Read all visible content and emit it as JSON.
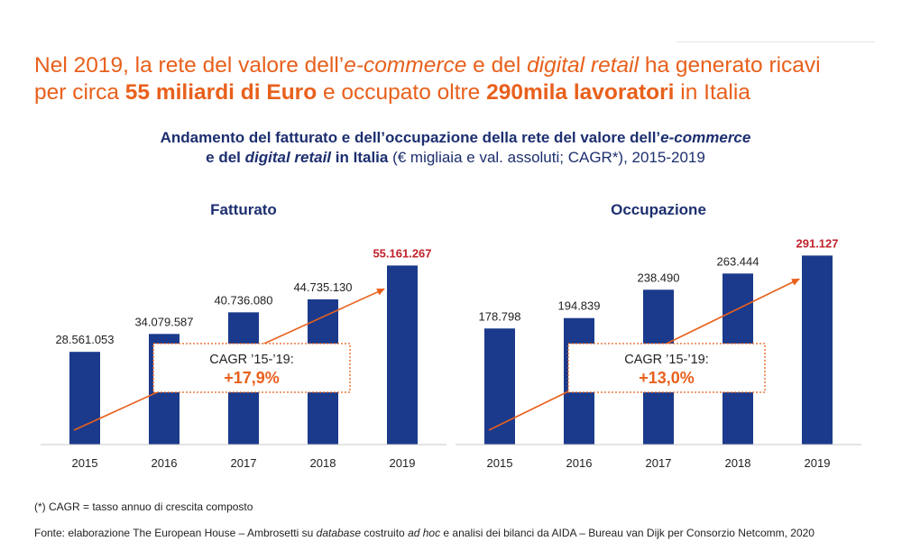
{
  "headline": {
    "p1": "Nel 2019, la rete del valore dell’",
    "p2": "e-commerce",
    "p3": " e del ",
    "p4": "digital retail",
    "p5": " ha generato ricavi",
    "p6": "per circa ",
    "p7": "55 miliardi di Euro",
    "p8": " e occupato oltre ",
    "p9": "290mila lavoratori",
    "p10": " in Italia"
  },
  "subtitle": {
    "p1": "Andamento del fatturato e dell’occupazione della rete del valore dell’",
    "p2": "e-commerce",
    "p3": "e del ",
    "p4": "digital retail",
    "p5": " in Italia",
    "p6": " (€ migliaia e val. assoluti; CAGR*), 2015-2019"
  },
  "colors": {
    "bar": "#1b3a8c",
    "accent": "#e8601c",
    "highlight": "#c0232c",
    "title": "#1d2f6f"
  },
  "chart_data": [
    {
      "type": "bar",
      "title": "Fatturato",
      "categories": [
        "2015",
        "2016",
        "2017",
        "2018",
        "2019"
      ],
      "values": [
        28561053,
        34079587,
        40736080,
        44735130,
        55161267
      ],
      "labels": [
        "28.561.053",
        "34.079.587",
        "40.736.080",
        "44.735.130",
        "55.161.267"
      ],
      "highlight_index": 4,
      "ylim": [
        0,
        60000000
      ],
      "annotation": {
        "line1": "CAGR ’15-’19:",
        "line2": "+17,9%"
      }
    },
    {
      "type": "bar",
      "title": "Occupazione",
      "categories": [
        "2015",
        "2016",
        "2017",
        "2018",
        "2019"
      ],
      "values": [
        178798,
        194839,
        238490,
        263444,
        291127
      ],
      "labels": [
        "178.798",
        "194.839",
        "238.490",
        "263.444",
        "291.127"
      ],
      "highlight_index": 4,
      "ylim": [
        0,
        300000
      ],
      "annotation": {
        "line1": "CAGR ’15-’19:",
        "line2": "+13,0%"
      }
    }
  ],
  "footnote": "(*) CAGR = tasso annuo di crescita composto",
  "source": {
    "p1": "Fonte: elaborazione The European House – Ambrosetti su ",
    "p2": "database",
    "p3": " costruito ",
    "p4": "ad hoc",
    "p5": " e analisi dei bilanci da AIDA – Bureau van Dijk per Consorzio Netcomm, 2020"
  }
}
